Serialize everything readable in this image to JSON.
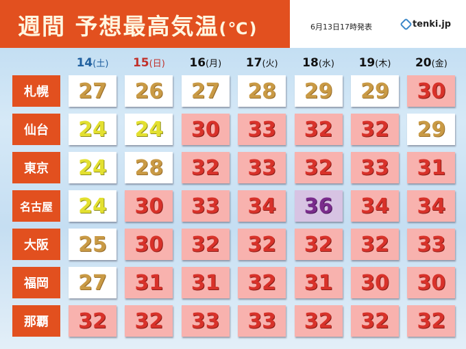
{
  "header": {
    "title": "週間 予想最高気温",
    "unit": "(℃)",
    "issued": "6月13日17時発表",
    "logo": "tenki.jp"
  },
  "colors": {
    "header_bg": "#e2501f",
    "saturday": "#1f5f9e",
    "sunday": "#c0302a",
    "weekday": "#111111",
    "cool": {
      "bg": "#ffffff",
      "text": "#e3e030"
    },
    "mild": {
      "bg": "#ffffff",
      "text": "#c99a45"
    },
    "hot": {
      "bg": "#f8b2ae",
      "text": "#d8322a"
    },
    "extreme": {
      "bg": "#d7c3e3",
      "text": "#7a2c8c"
    }
  },
  "chart_data": {
    "type": "table",
    "title": "週間 予想最高気温(℃)",
    "columns": [
      {
        "date": "14",
        "weekday": "(土)",
        "type": "saturday"
      },
      {
        "date": "15",
        "weekday": "(日)",
        "type": "sunday"
      },
      {
        "date": "16",
        "weekday": "(月)",
        "type": "weekday"
      },
      {
        "date": "17",
        "weekday": "(火)",
        "type": "weekday"
      },
      {
        "date": "18",
        "weekday": "(水)",
        "type": "weekday"
      },
      {
        "date": "19",
        "weekday": "(木)",
        "type": "weekday"
      },
      {
        "date": "20",
        "weekday": "(金)",
        "type": "weekday"
      }
    ],
    "rows": [
      {
        "city": "札幌",
        "values": [
          27,
          26,
          27,
          28,
          29,
          29,
          30
        ]
      },
      {
        "city": "仙台",
        "values": [
          24,
          24,
          30,
          33,
          32,
          32,
          29
        ]
      },
      {
        "city": "東京",
        "values": [
          24,
          28,
          32,
          33,
          32,
          33,
          31
        ]
      },
      {
        "city": "名古屋",
        "values": [
          24,
          30,
          33,
          34,
          36,
          34,
          34
        ]
      },
      {
        "city": "大阪",
        "values": [
          25,
          30,
          32,
          32,
          32,
          32,
          33
        ]
      },
      {
        "city": "福岡",
        "values": [
          27,
          31,
          31,
          32,
          31,
          30,
          30
        ]
      },
      {
        "city": "那覇",
        "values": [
          32,
          32,
          33,
          33,
          32,
          32,
          32
        ]
      }
    ]
  }
}
